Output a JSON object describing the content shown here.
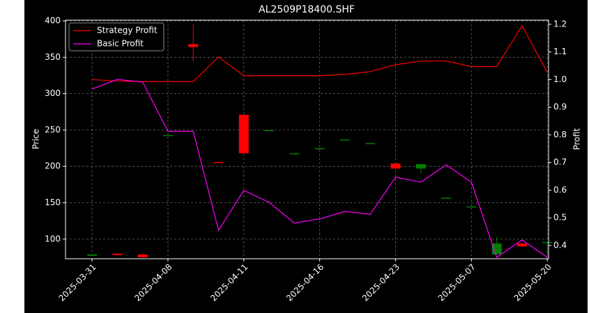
{
  "chart_data": {
    "type": "candlestick",
    "title": "AL2509P18400.SHF",
    "ylabel": "Price",
    "y2label": "Profit",
    "categories": [
      "2025-03-31",
      null,
      null,
      "2025-04-08",
      null,
      null,
      "2025-04-11",
      null,
      null,
      "2025-04-16",
      null,
      null,
      "2025-04-23",
      null,
      null,
      "2025-05-07",
      null,
      null,
      "2025-05-20"
    ],
    "open": [
      77,
      80,
      79,
      243,
      368,
      206,
      271,
      250,
      218,
      225,
      237,
      232,
      204,
      197,
      157,
      144,
      79,
      94,
      96
    ],
    "high": [
      79,
      80,
      79,
      243,
      395,
      206,
      271,
      250,
      218,
      225,
      237,
      232,
      206,
      203,
      157,
      145,
      103,
      94,
      96
    ],
    "low": [
      77,
      78,
      75,
      243,
      345,
      205,
      218,
      250,
      218,
      225,
      237,
      232,
      197,
      190,
      157,
      144,
      79,
      90,
      73
    ],
    "close": [
      79,
      78,
      75,
      243,
      364,
      205,
      218,
      250,
      218,
      225,
      237,
      232,
      197,
      203,
      157,
      145,
      94,
      90,
      96
    ],
    "up_color": "#008000",
    "down_color": "#ff0000",
    "series": [
      {
        "name": "Strategy Profit",
        "color": "#ff0000",
        "axis": "y2",
        "values": [
          1.0,
          0.995,
          0.993,
          0.993,
          0.993,
          1.082,
          1.014,
          1.014,
          1.014,
          1.014,
          1.019,
          1.029,
          1.054,
          1.067,
          1.067,
          1.047,
          1.047,
          1.195,
          1.026
        ]
      },
      {
        "name": "Basic Profit",
        "color": "#ff00ff",
        "axis": "y2",
        "values": [
          0.966,
          1.001,
          0.991,
          0.813,
          0.813,
          0.455,
          0.599,
          0.556,
          0.481,
          0.496,
          0.523,
          0.513,
          0.647,
          0.629,
          0.692,
          0.629,
          0.357,
          0.42,
          0.357
        ]
      }
    ],
    "ylim": [
      73,
      401
    ],
    "yticks": [
      100,
      150,
      200,
      250,
      300,
      350,
      400
    ],
    "y2lim": [
      0.352,
      1.215
    ],
    "y2ticks": [
      0.4,
      0.5,
      0.6,
      0.7,
      0.8,
      0.9,
      {
        "value": 1,
        "label": "1.0"
      },
      1.1,
      1.2
    ],
    "grid": true,
    "legend": "upper left"
  }
}
